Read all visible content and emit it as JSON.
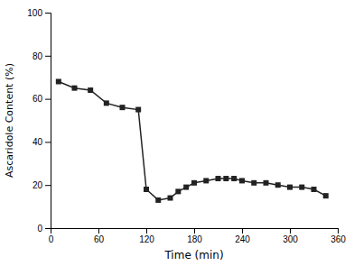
{
  "chart_data": {
    "type": "line",
    "xlabel": "Time (min)",
    "ylabel": "Ascaridole Content (%)",
    "x": [
      10,
      30,
      50,
      70,
      90,
      110,
      120,
      135,
      150,
      160,
      170,
      180,
      195,
      210,
      220,
      230,
      240,
      255,
      270,
      285,
      300,
      315,
      330,
      345
    ],
    "values": [
      68,
      65,
      64,
      58,
      56,
      55,
      18,
      13,
      14,
      17,
      19,
      21,
      22,
      23,
      23,
      23,
      22,
      21,
      21,
      20,
      19,
      19,
      18,
      15
    ],
    "xlim": [
      0,
      360
    ],
    "ylim": [
      0,
      100
    ],
    "xticks": [
      0,
      60,
      120,
      180,
      240,
      300,
      360
    ],
    "yticks": [
      0,
      20,
      40,
      60,
      80,
      100
    ],
    "color": "#222222",
    "marker": "square",
    "line_style": "solid"
  }
}
